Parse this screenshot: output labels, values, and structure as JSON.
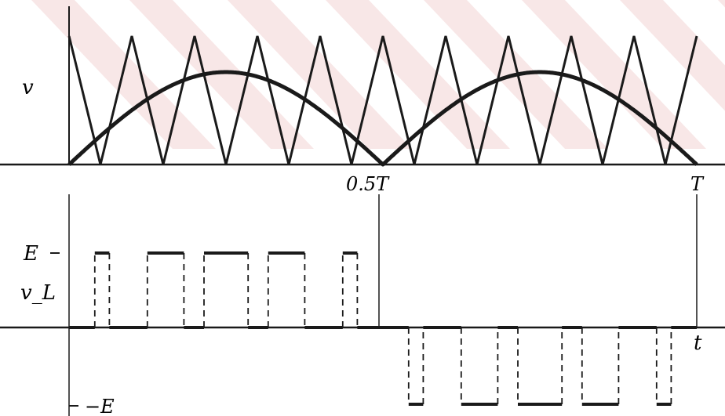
{
  "colors": {
    "ink": "#1a1a1a",
    "watermark": "#f3d3d3",
    "background": "#ffffff"
  },
  "top_panel": {
    "y_label": "v",
    "x_tick_half": "0.5T",
    "x_tick_full": "T",
    "sine_series": {
      "shape": "rectified-sine (|sin|)",
      "periods_shown": 2
    },
    "triangle_series": {
      "shape": "triangular carrier",
      "cycles_shown": 10
    }
  },
  "bottom_panel": {
    "y_tick_pos": "E",
    "y_label": "v_L",
    "y_tick_neg": "−E",
    "x_label": "t",
    "level_pos": 1,
    "level_neg": -1
  }
}
